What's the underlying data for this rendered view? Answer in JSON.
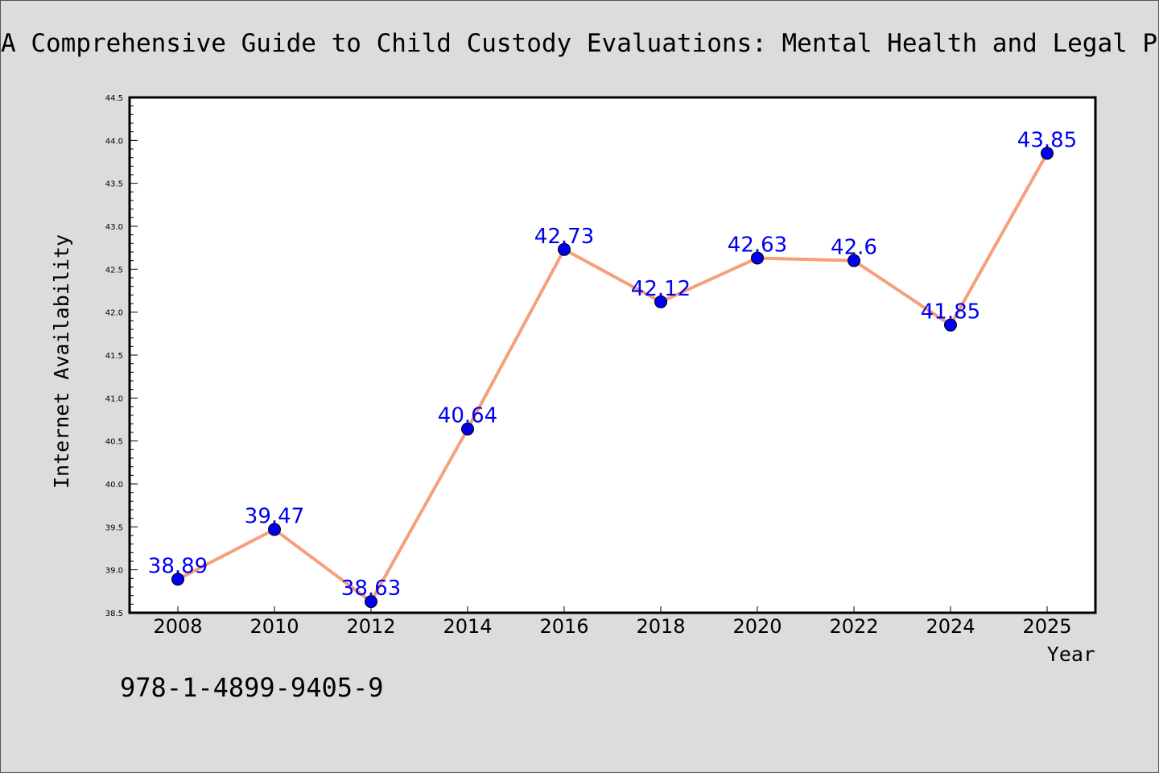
{
  "chart_data": {
    "type": "line",
    "title": "A Comprehensive Guide to Child Custody Evaluations: Mental Health and Legal Pers",
    "xlabel": "Year",
    "ylabel": "Internet Availability",
    "categories": [
      "2008",
      "2010",
      "2012",
      "2014",
      "2016",
      "2018",
      "2020",
      "2022",
      "2024",
      "2025"
    ],
    "values": [
      38.89,
      39.47,
      38.63,
      40.64,
      42.73,
      42.12,
      42.63,
      42.6,
      41.85,
      43.85
    ],
    "data_labels": [
      "38.89",
      "39.47",
      "38.63",
      "40.64",
      "42.73",
      "42.12",
      "42.63",
      "42.6",
      "41.85",
      "43.85"
    ],
    "ylim": [
      38.5,
      44.5
    ],
    "yticks": [
      "38.5",
      "39.0",
      "39.5",
      "40.0",
      "40.5",
      "41.0",
      "41.5",
      "42.0",
      "42.5",
      "43.0",
      "43.5",
      "44.0",
      "44.5"
    ],
    "grid": false,
    "line_color": "#f5a07a",
    "marker_color": "#0000ee",
    "label_color": "#0000ee",
    "background_color": "#dcdcdc",
    "plot_background_color": "#ffffff"
  },
  "footer": {
    "isbn": "978-1-4899-9405-9"
  }
}
